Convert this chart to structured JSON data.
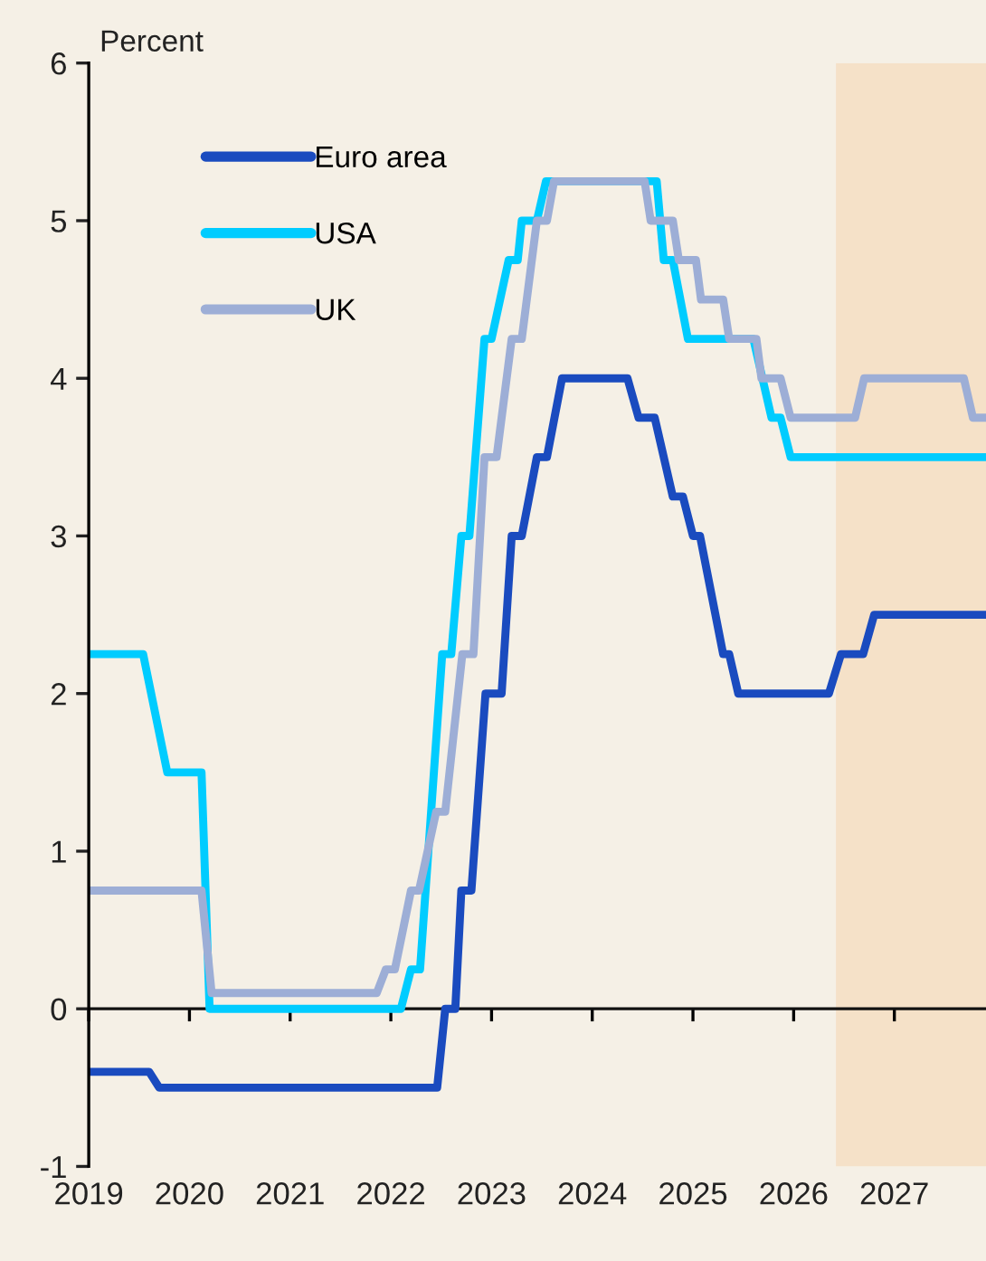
{
  "chart_data": {
    "type": "step",
    "ylabel": "Percent",
    "xlim": [
      2019,
      2027.91
    ],
    "xticks": [
      {
        "value": 2019,
        "label": "2019"
      },
      {
        "value": 2020,
        "label": "2020"
      },
      {
        "value": 2021,
        "label": "2021"
      },
      {
        "value": 2022,
        "label": "2022"
      },
      {
        "value": 2023,
        "label": "2023"
      },
      {
        "value": 2024,
        "label": "2024"
      },
      {
        "value": 2025,
        "label": "2025"
      },
      {
        "value": 2026,
        "label": "2026"
      },
      {
        "value": 2027,
        "label": "2027"
      }
    ],
    "ylim": [
      -1,
      6
    ],
    "yticks": [
      -1,
      0,
      1,
      2,
      3,
      4,
      5,
      6
    ],
    "ref_lines": [
      {
        "axis": "y",
        "value": 0,
        "color": "#111111"
      }
    ],
    "legend": "top left",
    "marker": "none",
    "line_style": "solid",
    "bands": [
      {
        "axis": "x",
        "from": 2026.42,
        "to": 2027.91,
        "color": "#f5e1c8"
      }
    ],
    "series": [
      {
        "name": "Euro area",
        "color": "#1a4bbf",
        "x": [
          2019,
          2019.6,
          2019.7,
          2022.46,
          2022.54,
          2022.64,
          2022.7,
          2022.8,
          2022.94,
          2023.1,
          2023.2,
          2023.3,
          2023.45,
          2023.55,
          2023.7,
          2024.35,
          2024.46,
          2024.62,
          2024.8,
          2024.9,
          2025.0,
          2025.07,
          2025.3,
          2025.36,
          2025.45,
          2026.35,
          2026.47,
          2026.69,
          2026.8,
          2027.91
        ],
        "values": [
          -0.4,
          -0.4,
          -0.5,
          -0.5,
          0,
          0,
          0.75,
          0.75,
          2.0,
          2.0,
          3.0,
          3.0,
          3.5,
          3.5,
          4.0,
          4.0,
          3.75,
          3.75,
          3.25,
          3.25,
          3.0,
          3.0,
          2.25,
          2.25,
          2.0,
          2.0,
          2.25,
          2.25,
          2.5,
          2.5
        ]
      },
      {
        "name": "USA",
        "color": "#00ccff",
        "x": [
          2019,
          2019.54,
          2019.78,
          2020.12,
          2020.2,
          2022.1,
          2022.2,
          2022.29,
          2022.51,
          2022.6,
          2022.7,
          2022.78,
          2022.93,
          2023.0,
          2023.17,
          2023.26,
          2023.3,
          2023.45,
          2023.54,
          2024.64,
          2024.71,
          2024.8,
          2024.95,
          2025.6,
          2025.78,
          2025.87,
          2025.97,
          2027.91
        ],
        "values": [
          2.25,
          2.25,
          1.5,
          1.5,
          0,
          0,
          0.25,
          0.25,
          2.25,
          2.25,
          3.0,
          3.0,
          4.25,
          4.25,
          4.75,
          4.75,
          5.0,
          5.0,
          5.25,
          5.25,
          4.75,
          4.75,
          4.25,
          4.25,
          3.75,
          3.75,
          3.5,
          3.5
        ]
      },
      {
        "name": "UK",
        "color": "#9daed6",
        "x": [
          2019,
          2020.12,
          2020.22,
          2021.86,
          2021.95,
          2022.04,
          2022.2,
          2022.28,
          2022.45,
          2022.54,
          2022.71,
          2022.82,
          2022.93,
          2023.05,
          2023.2,
          2023.3,
          2023.45,
          2023.55,
          2023.62,
          2024.52,
          2024.58,
          2024.8,
          2024.86,
          2025.03,
          2025.08,
          2025.3,
          2025.36,
          2025.63,
          2025.68,
          2025.87,
          2025.97,
          2026.61,
          2026.7,
          2027.69,
          2027.78,
          2027.91
        ],
        "values": [
          0.75,
          0.75,
          0.1,
          0.1,
          0.25,
          0.25,
          0.75,
          0.75,
          1.25,
          1.25,
          2.25,
          2.25,
          3.5,
          3.5,
          4.25,
          4.25,
          5.0,
          5.0,
          5.25,
          5.25,
          5.0,
          5.0,
          4.75,
          4.75,
          4.5,
          4.5,
          4.25,
          4.25,
          4.0,
          4.0,
          3.75,
          3.75,
          4.0,
          4.0,
          3.75,
          3.75
        ]
      }
    ]
  }
}
